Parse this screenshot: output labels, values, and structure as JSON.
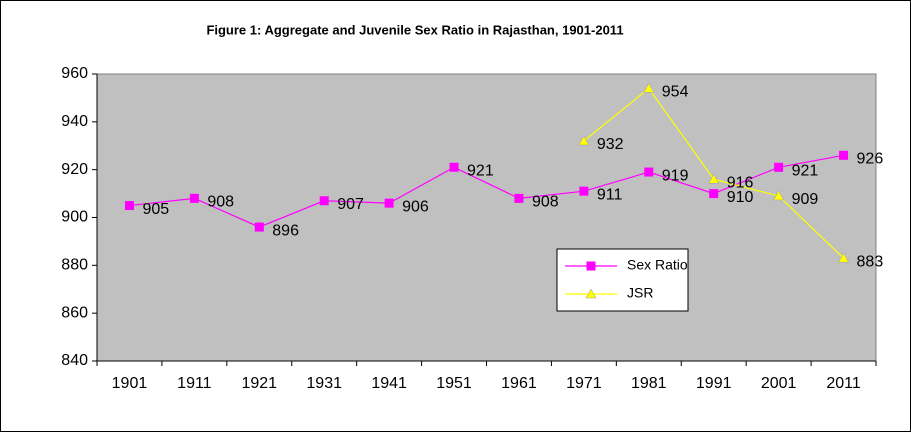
{
  "chart_data": {
    "type": "line",
    "title": "Figure 1: Aggregate and Juvenile Sex Ratio in Rajasthan, 1901-2011",
    "categories": [
      "1901",
      "1911",
      "1921",
      "1931",
      "1941",
      "1951",
      "1961",
      "1971",
      "1981",
      "1991",
      "2001",
      "2011"
    ],
    "series": [
      {
        "name": "Sex Ratio",
        "color": "#ff00ff",
        "marker": "square",
        "values": [
          905,
          908,
          896,
          907,
          906,
          921,
          908,
          911,
          919,
          910,
          921,
          926
        ]
      },
      {
        "name": "JSR",
        "color": "#ffff00",
        "marker": "triangle",
        "values": [
          null,
          null,
          null,
          null,
          null,
          null,
          null,
          932,
          954,
          916,
          909,
          883
        ]
      }
    ],
    "ylim": [
      840,
      960
    ],
    "yticks": [
      840,
      860,
      880,
      900,
      920,
      940,
      960
    ],
    "grid": false,
    "data_labels": true,
    "plot_background": "#c0c0c0",
    "legend": "inside-right"
  }
}
